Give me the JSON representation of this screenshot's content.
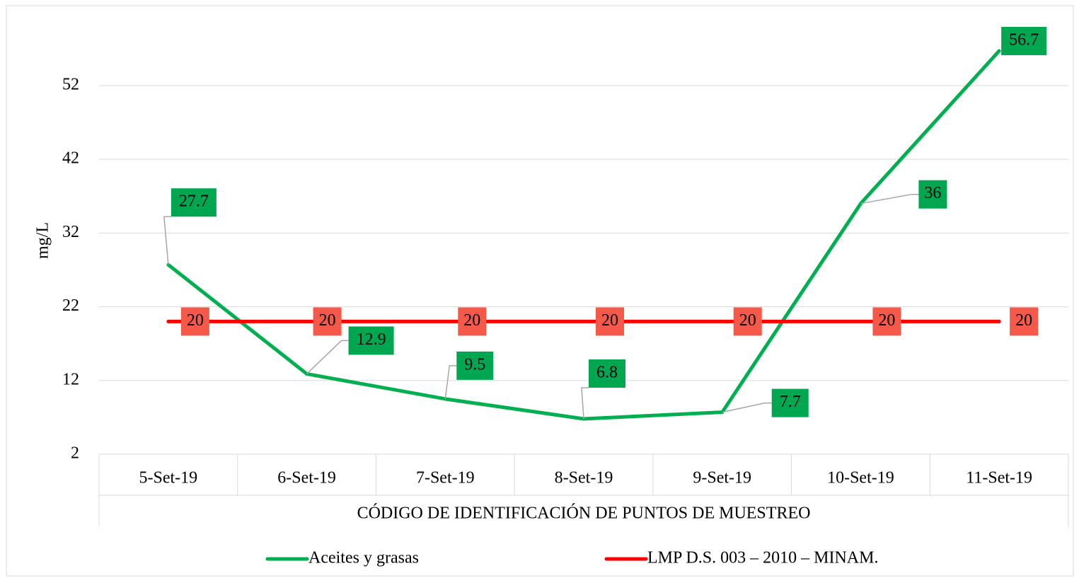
{
  "chart_data": {
    "type": "line",
    "x_label": "CÓDIGO DE IDENTIFICACIÓN DE PUNTOS DE MUESTREO",
    "y_label": "mg/L",
    "categories": [
      "5-Set-19",
      "6-Set-19",
      "7-Set-19",
      "8-Set-19",
      "9-Set-19",
      "10-Set-19",
      "11-Set-19"
    ],
    "series": [
      {
        "name": "Aceites y grasas",
        "color": "#00b050",
        "label_color": "#00a650",
        "values": [
          27.7,
          12.9,
          9.5,
          6.8,
          7.7,
          36,
          56.7
        ]
      },
      {
        "name": "LMP D.S. 003 – 2010 – MINAM.",
        "color": "#ff0000",
        "label_color": "#f4594a",
        "values": [
          20,
          20,
          20,
          20,
          20,
          20,
          20
        ]
      }
    ],
    "ylim": [
      2,
      60
    ],
    "yticks": [
      2,
      12,
      22,
      32,
      42,
      52
    ],
    "grid": true,
    "legend": "bottom"
  }
}
